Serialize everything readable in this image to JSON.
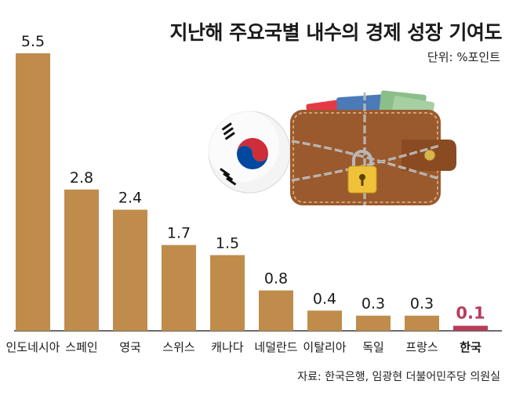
{
  "title": "지난해 주요국별 내수의 경제 성장 기여도",
  "unit": "단위: %포인트",
  "source": "자료: 한국은행, 임광현 더불어민주당 의원실",
  "colors": {
    "bar": "#bf8c4c",
    "highlight": "#b83c5c",
    "value_text": "#1a1a1a",
    "baseline": "#3a3a3a"
  },
  "icons": [
    "korean-flag-ball-icon",
    "chained-wallet-icon",
    "padlock-icon"
  ],
  "chart_data": {
    "type": "bar",
    "title": "지난해 주요국별 내수의 경제 성장 기여도",
    "ylabel": "",
    "xlabel": "",
    "unit": "%포인트",
    "categories": [
      "인도네시아",
      "스페인",
      "영국",
      "스위스",
      "캐나다",
      "네덜란드",
      "이탈리아",
      "독일",
      "프랑스",
      "한국"
    ],
    "values": [
      5.5,
      2.8,
      2.4,
      1.7,
      1.5,
      0.8,
      0.4,
      0.3,
      0.3,
      0.1
    ],
    "labels": [
      "5.5",
      "2.8",
      "2.4",
      "1.7",
      "1.5",
      "0.8",
      "0.4",
      "0.3",
      "0.3",
      "0.1"
    ],
    "highlight": "한국",
    "ylim": [
      0,
      5.5
    ],
    "grid": false,
    "legend": "none"
  }
}
